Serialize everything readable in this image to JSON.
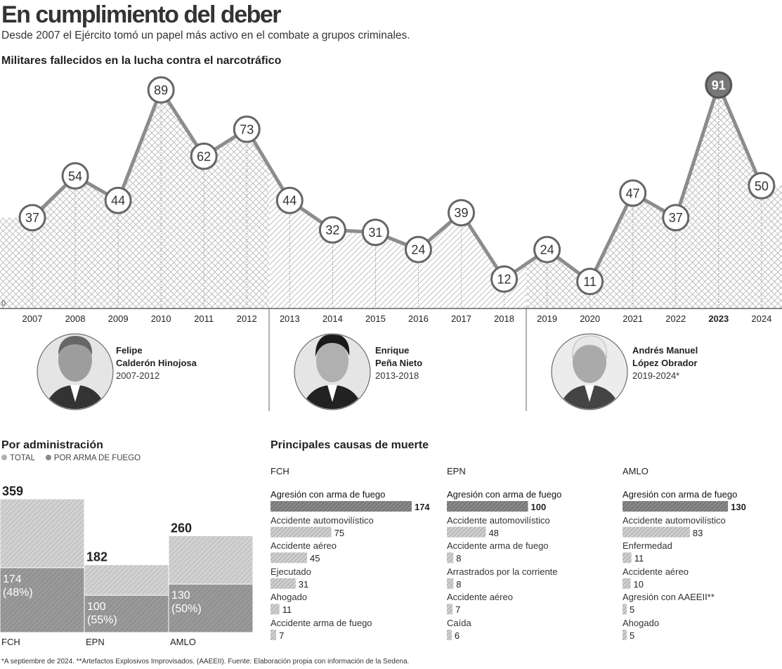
{
  "title": "En cumplimiento del deber",
  "subtitle": "Desde 2007 el Ejército tomó un papel más activo en el combate a grupos criminales.",
  "chart_data": [
    {
      "type": "area",
      "title": "Militares fallecidos en la lucha contra el narcotráfico",
      "x": [
        "2007",
        "2008",
        "2009",
        "2010",
        "2011",
        "2012",
        "2013",
        "2014",
        "2015",
        "2016",
        "2017",
        "2018",
        "2019",
        "2020",
        "2021",
        "2022",
        "2023",
        "2024"
      ],
      "values": [
        37,
        54,
        44,
        89,
        62,
        73,
        44,
        32,
        31,
        24,
        39,
        12,
        24,
        11,
        47,
        37,
        91,
        50
      ],
      "highlight": "2023",
      "ylim": [
        0,
        100
      ],
      "y_tick_label": "0"
    },
    {
      "type": "bar",
      "title": "Por administración",
      "legend": [
        "TOTAL",
        "POR ARMA DE FUEGO"
      ],
      "categories": [
        "FCH",
        "EPN",
        "AMLO"
      ],
      "series": [
        {
          "name": "TOTAL",
          "values": [
            359,
            182,
            260
          ]
        },
        {
          "name": "POR ARMA DE FUEGO",
          "values": [
            174,
            100,
            130
          ],
          "labels": [
            "(48%)",
            "(55%)",
            "(50%)"
          ]
        }
      ]
    },
    {
      "type": "bar",
      "title": "Principales causas de muerte",
      "panels": [
        {
          "name": "FCH",
          "causes": [
            {
              "label": "Agresión con arma de fuego",
              "value": 174
            },
            {
              "label": "Accidente automovilístico",
              "value": 75
            },
            {
              "label": "Accidente aéreo",
              "value": 45
            },
            {
              "label": "Ejecutado",
              "value": 31
            },
            {
              "label": "Ahogado",
              "value": 11
            },
            {
              "label": "Accidente arma de fuego",
              "value": 7
            }
          ]
        },
        {
          "name": "EPN",
          "causes": [
            {
              "label": "Agresión con arma de fuego",
              "value": 100
            },
            {
              "label": "Accidente automovilístico",
              "value": 48
            },
            {
              "label": "Accidente arma de fuego",
              "value": 8
            },
            {
              "label": "Arrastrados por la corriente",
              "value": 8
            },
            {
              "label": "Accidente aéreo",
              "value": 7
            },
            {
              "label": "Caída",
              "value": 6
            }
          ]
        },
        {
          "name": "AMLO",
          "causes": [
            {
              "label": "Agresión con arma de fuego",
              "value": 130
            },
            {
              "label": "Accidente automovilístico",
              "value": 83
            },
            {
              "label": "Enfermedad",
              "value": 11
            },
            {
              "label": "Accidente aéreo",
              "value": 10
            },
            {
              "label": "Agresión con  AAEEII**",
              "value": 5
            },
            {
              "label": "Ahogado",
              "value": 5
            }
          ]
        }
      ]
    }
  ],
  "presidents": [
    {
      "name_line1": "Felipe",
      "name_line2": "Calderón Hinojosa",
      "years": "2007-2012"
    },
    {
      "name_line1": "Enrique",
      "name_line2": "Peña Nieto",
      "years": "2013-2018"
    },
    {
      "name_line1": "Andrés Manuel",
      "name_line2": "López Obrador",
      "years": "2019-2024*"
    }
  ],
  "footnote": "*A septiembre de 2024. **Artefactos Explosivos Improvisados. (AAEEII). Fuente: Elaboración propia con información de la Sedena."
}
